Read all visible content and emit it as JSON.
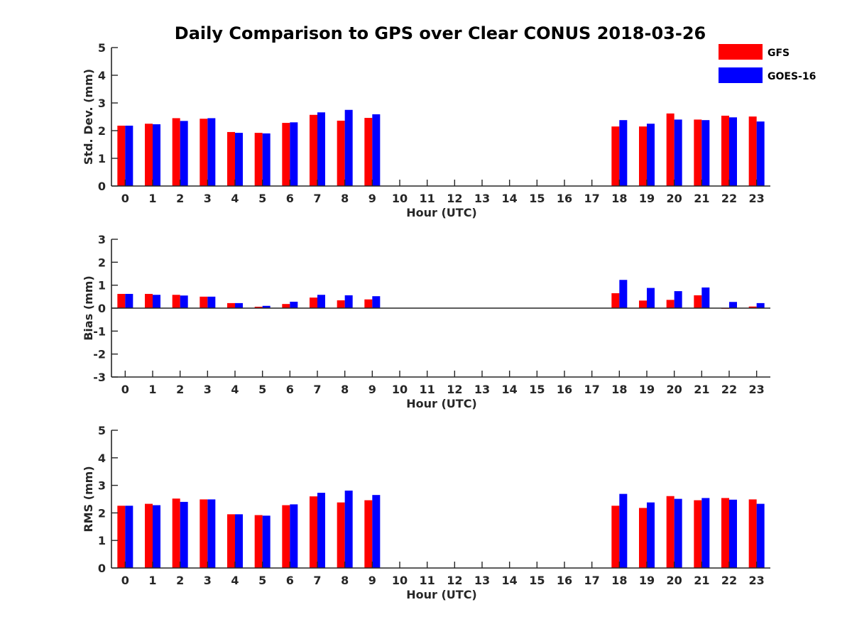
{
  "chart_data": {
    "type": "bar",
    "title": "Daily Comparison to GPS over Clear CONUS 2018-03-26",
    "legend": {
      "placement": "top-right",
      "entries": [
        {
          "name": "GFS",
          "color": "#ff0000"
        },
        {
          "name": "GOES-16",
          "color": "#0000ff"
        }
      ]
    },
    "categories": [
      "0",
      "1",
      "2",
      "3",
      "4",
      "5",
      "6",
      "7",
      "8",
      "9",
      "10",
      "11",
      "12",
      "13",
      "14",
      "15",
      "16",
      "17",
      "18",
      "19",
      "20",
      "21",
      "22",
      "23"
    ],
    "panels": [
      {
        "id": "std",
        "ylabel": "Std. Dev. (mm)",
        "xlabel": "Hour (UTC)",
        "ylim": [
          0,
          5
        ],
        "yticks": [
          0,
          1,
          2,
          3,
          4,
          5
        ],
        "series": [
          {
            "name": "GFS",
            "color": "#ff0000",
            "values": [
              2.18,
              2.25,
              2.45,
              2.43,
              1.95,
              1.92,
              2.28,
              2.57,
              2.36,
              2.46,
              null,
              null,
              null,
              null,
              null,
              null,
              null,
              null,
              2.15,
              2.15,
              2.62,
              2.4,
              2.54,
              2.51
            ]
          },
          {
            "name": "GOES-16",
            "color": "#0000ff",
            "values": [
              2.18,
              2.23,
              2.35,
              2.45,
              1.92,
              1.9,
              2.3,
              2.66,
              2.75,
              2.59,
              null,
              null,
              null,
              null,
              null,
              null,
              null,
              null,
              2.38,
              2.25,
              2.4,
              2.38,
              2.48,
              2.33
            ]
          }
        ]
      },
      {
        "id": "bias",
        "ylabel": "Bias (mm)",
        "xlabel": "Hour (UTC)",
        "ylim": [
          -3,
          3
        ],
        "yticks": [
          -3,
          -2,
          -1,
          0,
          1,
          2,
          3
        ],
        "series": [
          {
            "name": "GFS",
            "color": "#ff0000",
            "values": [
              0.62,
              0.62,
              0.58,
              0.5,
              0.22,
              0.06,
              0.18,
              0.46,
              0.34,
              0.38,
              null,
              null,
              null,
              null,
              null,
              null,
              null,
              null,
              0.65,
              0.33,
              0.36,
              0.56,
              -0.03,
              0.07
            ]
          },
          {
            "name": "GOES-16",
            "color": "#0000ff",
            "values": [
              0.62,
              0.58,
              0.55,
              0.5,
              0.22,
              0.1,
              0.28,
              0.58,
              0.56,
              0.52,
              null,
              null,
              null,
              null,
              null,
              null,
              null,
              null,
              1.23,
              0.88,
              0.74,
              0.9,
              0.27,
              0.22
            ]
          }
        ]
      },
      {
        "id": "rms",
        "ylabel": "RMS (mm)",
        "xlabel": "Hour (UTC)",
        "ylim": [
          0,
          5
        ],
        "yticks": [
          0,
          1,
          2,
          3,
          4,
          5
        ],
        "series": [
          {
            "name": "GFS",
            "color": "#ff0000",
            "values": [
              2.26,
              2.33,
              2.52,
              2.49,
              1.95,
              1.92,
              2.28,
              2.6,
              2.38,
              2.46,
              null,
              null,
              null,
              null,
              null,
              null,
              null,
              null,
              2.26,
              2.18,
              2.61,
              2.46,
              2.54,
              2.49
            ]
          },
          {
            "name": "GOES-16",
            "color": "#0000ff",
            "values": [
              2.26,
              2.28,
              2.4,
              2.49,
              1.95,
              1.9,
              2.31,
              2.73,
              2.81,
              2.65,
              null,
              null,
              null,
              null,
              null,
              null,
              null,
              null,
              2.69,
              2.38,
              2.51,
              2.54,
              2.48,
              2.33
            ]
          }
        ]
      }
    ]
  }
}
